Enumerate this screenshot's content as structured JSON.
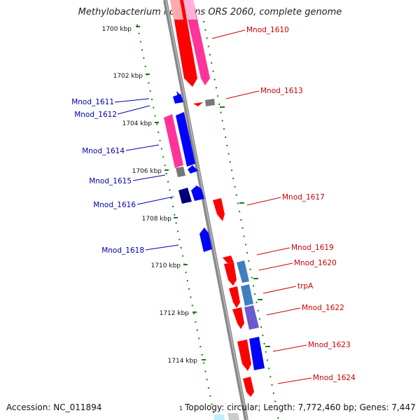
{
  "title": "Methylobacterium nodulans ORS 2060, complete genome",
  "footer": {
    "accession": "Accession: NC_011894",
    "topology_num": "1",
    "topology": "Topology: circular; Length: 7,772,460 bp; Genes: 7,447"
  },
  "colors": {
    "forward_label": "#cc0000",
    "reverse_label": "#0000aa",
    "backbone": "#888888",
    "tick": "#1a7a1a"
  },
  "ticks": [
    "1700 kbp",
    "1702 kbp",
    "1704 kbp",
    "1706 kbp",
    "1708 kbp",
    "1710 kbp",
    "1712 kbp",
    "1714 kbp"
  ],
  "labels_left": [
    "Mnod_1611",
    "Mnod_1612",
    "Mnod_1614",
    "Mnod_1615",
    "Mnod_1616",
    "Mnod_1618"
  ],
  "labels_right": [
    "Mnod_1610",
    "Mnod_1613",
    "Mnod_1617",
    "Mnod_1619",
    "Mnod_1620",
    "trpA",
    "Mnod_1622",
    "Mnod_1623",
    "Mnod_1624"
  ]
}
